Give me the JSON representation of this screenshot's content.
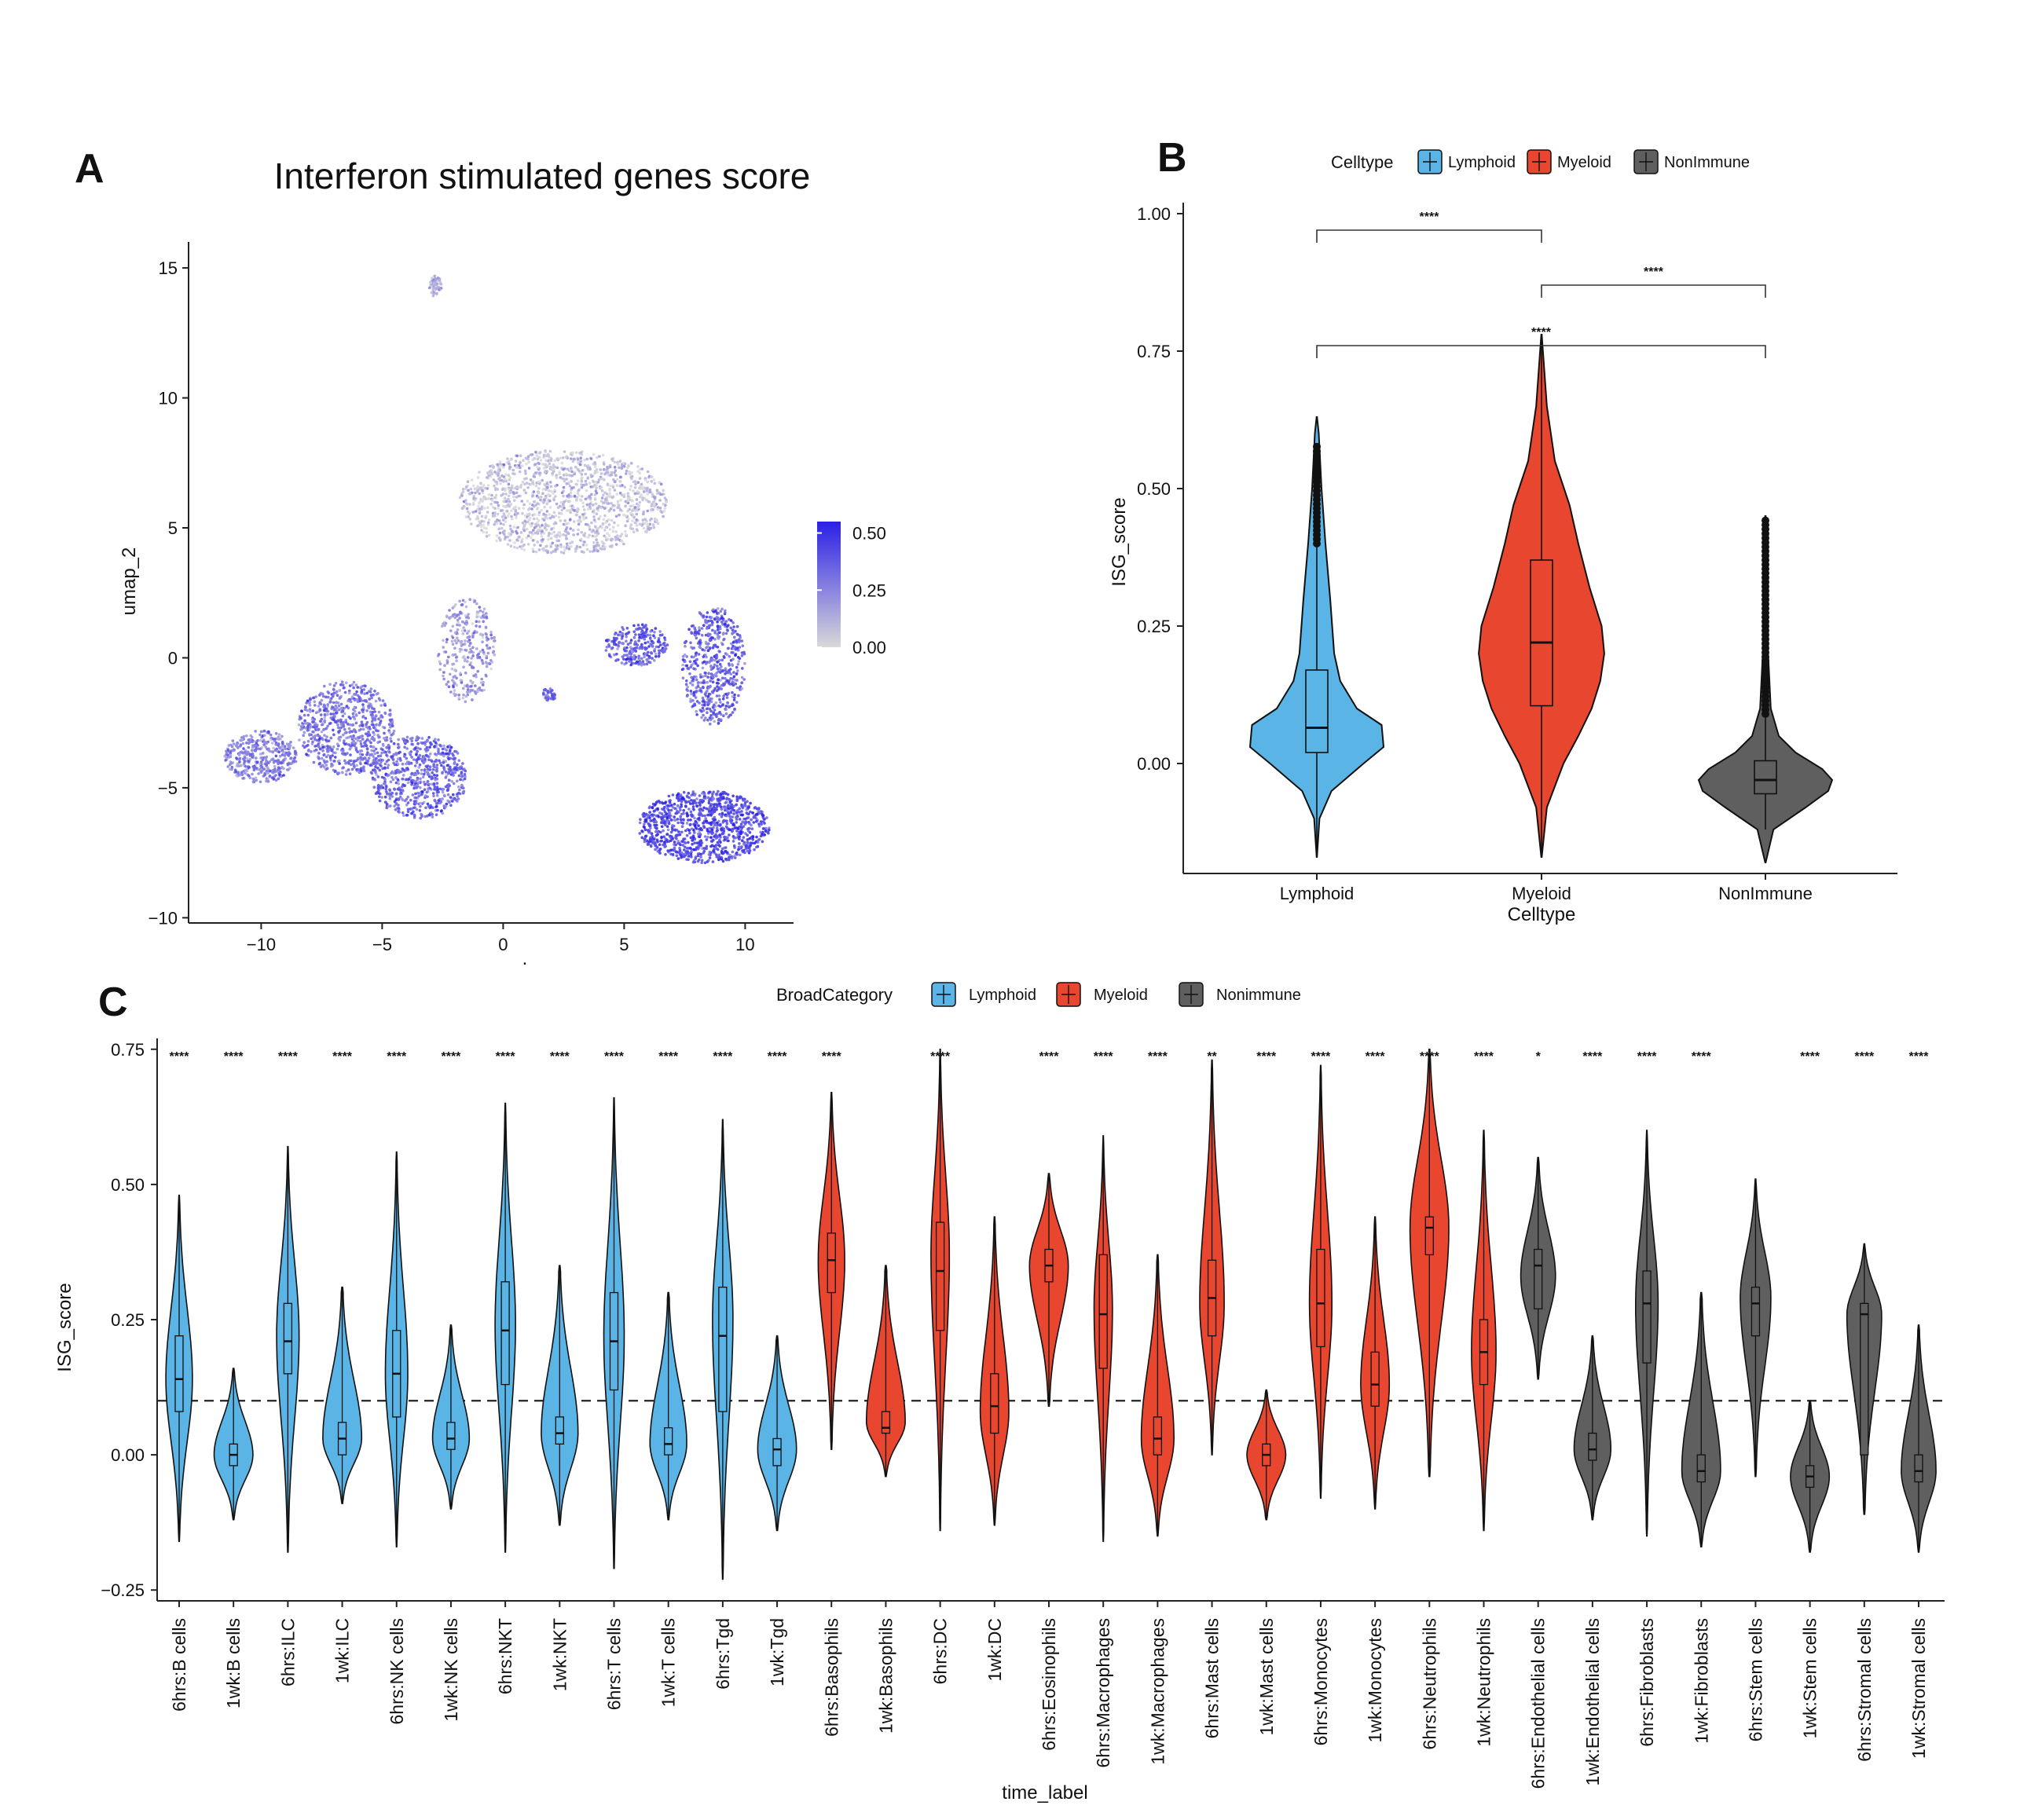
{
  "panels": {
    "A": {
      "letter": "A",
      "title": "Interferon stimulated genes score",
      "ylabel": "umap_2",
      "xlabel": ".",
      "xticks": [
        "−10",
        "−5",
        "0",
        "5",
        "10"
      ],
      "yticks": [
        "15",
        "10",
        "5",
        "0",
        "−5",
        "−10"
      ],
      "colorbar_ticks": [
        "0.50",
        "0.25",
        "0.00"
      ],
      "colorbar_colors": {
        "low": "#d9d9d9",
        "high": "#2a1fe6"
      }
    },
    "B": {
      "letter": "B",
      "legend_title": "Celltype",
      "ylabel": "ISG_score",
      "xlabel": "Celltype",
      "yticks": [
        "1.00",
        "0.75",
        "0.50",
        "0.25",
        "0.00"
      ],
      "sig_label": "****"
    },
    "C": {
      "letter": "C",
      "legend_title": "BroadCategory",
      "ylabel": "ISG_score",
      "xlabel": "time_label",
      "yticks": [
        "0.75",
        "0.50",
        "0.25",
        "0.00",
        "−0.25"
      ]
    }
  },
  "colors": {
    "Lymphoid": "#5ab4e5",
    "Myeloid": "#e8462e",
    "NonImmune": "#5f5f5f"
  },
  "chart_data": [
    {
      "type": "scatter",
      "panel": "A",
      "title": "Interferon stimulated genes score",
      "xlabel": "",
      "ylabel": "umap_2",
      "xlim": [
        -13,
        12
      ],
      "ylim": [
        -10.2,
        16
      ],
      "color_scale": {
        "min": 0.0,
        "max": 0.55,
        "ticks": [
          0.0,
          0.25,
          0.5
        ]
      },
      "clusters": [
        {
          "cx": 2.5,
          "cy": 6.0,
          "rx": 4.3,
          "ry": 2.0,
          "n": 1400,
          "score": 0.08
        },
        {
          "cx": -2.8,
          "cy": 14.3,
          "rx": 0.25,
          "ry": 0.4,
          "n": 60,
          "score": 0.15
        },
        {
          "cx": -10.0,
          "cy": -3.8,
          "rx": 1.5,
          "ry": 1.0,
          "n": 400,
          "score": 0.28
        },
        {
          "cx": -6.5,
          "cy": -2.7,
          "rx": 2.0,
          "ry": 1.8,
          "n": 700,
          "score": 0.33
        },
        {
          "cx": -3.5,
          "cy": -4.6,
          "rx": 2.0,
          "ry": 1.6,
          "n": 650,
          "score": 0.36
        },
        {
          "cx": -1.5,
          "cy": 0.3,
          "rx": 1.2,
          "ry": 2.0,
          "n": 300,
          "score": 0.22
        },
        {
          "cx": 5.5,
          "cy": 0.5,
          "rx": 1.3,
          "ry": 0.8,
          "n": 250,
          "score": 0.4
        },
        {
          "cx": 8.7,
          "cy": -0.3,
          "rx": 1.3,
          "ry": 2.3,
          "n": 550,
          "score": 0.38
        },
        {
          "cx": 8.3,
          "cy": -6.5,
          "rx": 2.7,
          "ry": 1.4,
          "n": 1000,
          "score": 0.45
        },
        {
          "cx": 1.9,
          "cy": -1.4,
          "rx": 0.3,
          "ry": 0.25,
          "n": 40,
          "score": 0.35
        }
      ]
    },
    {
      "type": "violin",
      "panel": "B",
      "xlabel": "Celltype",
      "ylabel": "ISG_score",
      "ylim": [
        -0.2,
        1.02
      ],
      "legend": {
        "title": "Celltype",
        "entries": [
          "Lymphoid",
          "Myeloid",
          "NonImmune"
        ],
        "placement": "top"
      },
      "categories": [
        "Lymphoid",
        "Myeloid",
        "NonImmune"
      ],
      "groups": [
        {
          "name": "Lymphoid",
          "min": -0.17,
          "max": 0.63,
          "q1": 0.02,
          "median": 0.065,
          "q3": 0.17,
          "whisker_low": -0.17,
          "whisker_high": 0.4,
          "outlier_max": 0.58,
          "shape": [
            [
              -0.17,
              0.002
            ],
            [
              -0.1,
              0.04
            ],
            [
              -0.05,
              0.22
            ],
            [
              0.0,
              0.7
            ],
            [
              0.03,
              1.0
            ],
            [
              0.07,
              0.97
            ],
            [
              0.1,
              0.6
            ],
            [
              0.15,
              0.35
            ],
            [
              0.2,
              0.26
            ],
            [
              0.3,
              0.2
            ],
            [
              0.4,
              0.13
            ],
            [
              0.5,
              0.07
            ],
            [
              0.6,
              0.03
            ],
            [
              0.63,
              0.004
            ]
          ]
        },
        {
          "name": "Myeloid",
          "min": -0.17,
          "max": 0.78,
          "q1": 0.105,
          "median": 0.22,
          "q3": 0.37,
          "whisker_low": -0.17,
          "whisker_high": 0.78,
          "outlier_max": null,
          "shape": [
            [
              -0.17,
              0.004
            ],
            [
              -0.08,
              0.08
            ],
            [
              0.0,
              0.33
            ],
            [
              0.05,
              0.55
            ],
            [
              0.1,
              0.75
            ],
            [
              0.15,
              0.88
            ],
            [
              0.2,
              0.94
            ],
            [
              0.25,
              0.9
            ],
            [
              0.32,
              0.72
            ],
            [
              0.4,
              0.55
            ],
            [
              0.47,
              0.42
            ],
            [
              0.55,
              0.2
            ],
            [
              0.65,
              0.08
            ],
            [
              0.78,
              0.004
            ]
          ]
        },
        {
          "name": "NonImmune",
          "min": -0.18,
          "max": 0.45,
          "q1": -0.055,
          "median": -0.03,
          "q3": 0.005,
          "whisker_low": -0.12,
          "whisker_high": 0.09,
          "outlier_max": 0.45,
          "shape": [
            [
              -0.18,
              0.004
            ],
            [
              -0.12,
              0.12
            ],
            [
              -0.08,
              0.6
            ],
            [
              -0.05,
              0.94
            ],
            [
              -0.03,
              1.0
            ],
            [
              -0.01,
              0.85
            ],
            [
              0.02,
              0.45
            ],
            [
              0.05,
              0.2
            ],
            [
              0.1,
              0.08
            ],
            [
              0.2,
              0.04
            ],
            [
              0.3,
              0.025
            ],
            [
              0.45,
              0.004
            ]
          ]
        }
      ],
      "comparisons": [
        {
          "from": "Lymphoid",
          "to": "Myeloid",
          "y": 0.97,
          "label": "****"
        },
        {
          "from": "Myeloid",
          "to": "NonImmune",
          "y": 0.87,
          "label": "****"
        },
        {
          "from": "Lymphoid",
          "to": "NonImmune",
          "y": 0.76,
          "label": "****"
        }
      ]
    },
    {
      "type": "violin",
      "panel": "C",
      "xlabel": "time_label",
      "ylabel": "ISG_score",
      "ylim": [
        -0.27,
        0.77
      ],
      "reference_line": 0.1,
      "legend": {
        "title": "BroadCategory",
        "entries": [
          "Lymphoid",
          "Myeloid",
          "Nonimmune"
        ],
        "placement": "top"
      },
      "groups": [
        {
          "label": "6hrs:B cells",
          "cat": "Lymphoid",
          "min": -0.16,
          "max": 0.48,
          "q1": 0.08,
          "median": 0.14,
          "q3": 0.22,
          "peak": 0.14,
          "width": 0.65,
          "sig": "****"
        },
        {
          "label": "1wk:B cells",
          "cat": "Lymphoid",
          "min": -0.12,
          "max": 0.16,
          "q1": -0.02,
          "median": 0.0,
          "q3": 0.02,
          "peak": 0.0,
          "width": 0.95,
          "sig": "****"
        },
        {
          "label": "6hrs:ILC",
          "cat": "Lymphoid",
          "min": -0.18,
          "max": 0.57,
          "q1": 0.15,
          "median": 0.21,
          "q3": 0.28,
          "peak": 0.22,
          "width": 0.55,
          "sig": "****"
        },
        {
          "label": "1wk:ILC",
          "cat": "Lymphoid",
          "min": -0.09,
          "max": 0.31,
          "q1": 0.0,
          "median": 0.03,
          "q3": 0.06,
          "peak": 0.03,
          "width": 0.95,
          "sig": "****"
        },
        {
          "label": "6hrs:NK cells",
          "cat": "Lymphoid",
          "min": -0.17,
          "max": 0.56,
          "q1": 0.07,
          "median": 0.15,
          "q3": 0.23,
          "peak": 0.15,
          "width": 0.55,
          "sig": "****"
        },
        {
          "label": "1wk:NK cells",
          "cat": "Lymphoid",
          "min": -0.1,
          "max": 0.24,
          "q1": 0.01,
          "median": 0.03,
          "q3": 0.06,
          "peak": 0.03,
          "width": 0.9,
          "sig": "****"
        },
        {
          "label": "6hrs:NKT",
          "cat": "Lymphoid",
          "min": -0.18,
          "max": 0.65,
          "q1": 0.13,
          "median": 0.23,
          "q3": 0.32,
          "peak": 0.24,
          "width": 0.5,
          "sig": "****"
        },
        {
          "label": "1wk:NKT",
          "cat": "Lymphoid",
          "min": -0.13,
          "max": 0.35,
          "q1": 0.02,
          "median": 0.04,
          "q3": 0.07,
          "peak": 0.04,
          "width": 0.9,
          "sig": "****"
        },
        {
          "label": "6hrs:T cells",
          "cat": "Lymphoid",
          "min": -0.21,
          "max": 0.66,
          "q1": 0.12,
          "median": 0.21,
          "q3": 0.3,
          "peak": 0.22,
          "width": 0.5,
          "sig": "****"
        },
        {
          "label": "1wk:T cells",
          "cat": "Lymphoid",
          "min": -0.12,
          "max": 0.3,
          "q1": 0.0,
          "median": 0.02,
          "q3": 0.05,
          "peak": 0.02,
          "width": 0.9,
          "sig": "****"
        },
        {
          "label": "6hrs:Tgd",
          "cat": "Lymphoid",
          "min": -0.23,
          "max": 0.62,
          "q1": 0.08,
          "median": 0.22,
          "q3": 0.31,
          "peak": 0.25,
          "width": 0.5,
          "sig": "****"
        },
        {
          "label": "1wk:Tgd",
          "cat": "Lymphoid",
          "min": -0.14,
          "max": 0.22,
          "q1": -0.02,
          "median": 0.01,
          "q3": 0.03,
          "peak": 0.01,
          "width": 0.95,
          "sig": "****"
        },
        {
          "label": "6hrs:Basophils",
          "cat": "Myeloid",
          "min": 0.01,
          "max": 0.67,
          "q1": 0.3,
          "median": 0.36,
          "q3": 0.41,
          "peak": 0.36,
          "width": 0.65,
          "sig": "****"
        },
        {
          "label": "1wk:Basophils",
          "cat": "Myeloid",
          "min": -0.04,
          "max": 0.35,
          "q1": 0.04,
          "median": 0.05,
          "q3": 0.08,
          "peak": 0.06,
          "width": 0.95,
          "sig": ""
        },
        {
          "label": "6hrs:DC",
          "cat": "Myeloid",
          "min": -0.14,
          "max": 0.75,
          "q1": 0.23,
          "median": 0.34,
          "q3": 0.43,
          "peak": 0.37,
          "width": 0.45,
          "sig": "****"
        },
        {
          "label": "1wk:DC",
          "cat": "Myeloid",
          "min": -0.13,
          "max": 0.44,
          "q1": 0.04,
          "median": 0.09,
          "q3": 0.15,
          "peak": 0.08,
          "width": 0.7,
          "sig": ""
        },
        {
          "label": "6hrs:Eosinophils",
          "cat": "Myeloid",
          "min": 0.09,
          "max": 0.52,
          "q1": 0.32,
          "median": 0.35,
          "q3": 0.38,
          "peak": 0.35,
          "width": 0.95,
          "sig": "****"
        },
        {
          "label": "6hrs:Macrophages",
          "cat": "Myeloid",
          "min": -0.16,
          "max": 0.59,
          "q1": 0.16,
          "median": 0.26,
          "q3": 0.37,
          "peak": 0.27,
          "width": 0.45,
          "sig": "****"
        },
        {
          "label": "1wk:Macrophages",
          "cat": "Myeloid",
          "min": -0.15,
          "max": 0.37,
          "q1": 0.0,
          "median": 0.03,
          "q3": 0.07,
          "peak": 0.03,
          "width": 0.8,
          "sig": "****"
        },
        {
          "label": "6hrs:Mast cells",
          "cat": "Myeloid",
          "min": 0.0,
          "max": 0.73,
          "q1": 0.22,
          "median": 0.29,
          "q3": 0.36,
          "peak": 0.28,
          "width": 0.6,
          "sig": "**"
        },
        {
          "label": "1wk:Mast cells",
          "cat": "Myeloid",
          "min": -0.12,
          "max": 0.12,
          "q1": -0.02,
          "median": 0.0,
          "q3": 0.02,
          "peak": 0.0,
          "width": 0.95,
          "sig": "****"
        },
        {
          "label": "6hrs:Monocytes",
          "cat": "Myeloid",
          "min": -0.08,
          "max": 0.72,
          "q1": 0.2,
          "median": 0.28,
          "q3": 0.38,
          "peak": 0.28,
          "width": 0.55,
          "sig": "****"
        },
        {
          "label": "1wk:Monocytes",
          "cat": "Myeloid",
          "min": -0.1,
          "max": 0.44,
          "q1": 0.09,
          "median": 0.13,
          "q3": 0.19,
          "peak": 0.13,
          "width": 0.7,
          "sig": "****"
        },
        {
          "label": "6hrs:Neutrophils",
          "cat": "Myeloid",
          "min": -0.04,
          "max": 0.75,
          "q1": 0.37,
          "median": 0.42,
          "q3": 0.44,
          "peak": 0.42,
          "width": 0.95,
          "sig": "****"
        },
        {
          "label": "1wk:Neutrophils",
          "cat": "Myeloid",
          "min": -0.14,
          "max": 0.6,
          "q1": 0.13,
          "median": 0.19,
          "q3": 0.25,
          "peak": 0.19,
          "width": 0.6,
          "sig": "****"
        },
        {
          "label": "6hrs:Endothelial cells",
          "cat": "NonImmune",
          "min": 0.14,
          "max": 0.55,
          "q1": 0.27,
          "median": 0.35,
          "q3": 0.38,
          "peak": 0.33,
          "width": 0.85,
          "sig": "*"
        },
        {
          "label": "1wk:Endothelial cells",
          "cat": "NonImmune",
          "min": -0.12,
          "max": 0.22,
          "q1": -0.01,
          "median": 0.01,
          "q3": 0.04,
          "peak": 0.01,
          "width": 0.9,
          "sig": "****"
        },
        {
          "label": "6hrs:Fibroblasts",
          "cat": "NonImmune",
          "min": -0.15,
          "max": 0.6,
          "q1": 0.17,
          "median": 0.28,
          "q3": 0.34,
          "peak": 0.28,
          "width": 0.55,
          "sig": "****"
        },
        {
          "label": "1wk:Fibroblasts",
          "cat": "NonImmune",
          "min": -0.17,
          "max": 0.3,
          "q1": -0.05,
          "median": -0.03,
          "q3": 0.0,
          "peak": -0.03,
          "width": 0.95,
          "sig": "****"
        },
        {
          "label": "6hrs:Stem cells",
          "cat": "NonImmune",
          "min": -0.04,
          "max": 0.51,
          "q1": 0.22,
          "median": 0.28,
          "q3": 0.31,
          "peak": 0.29,
          "width": 0.75,
          "sig": ""
        },
        {
          "label": "1wk:Stem cells",
          "cat": "NonImmune",
          "min": -0.18,
          "max": 0.1,
          "q1": -0.06,
          "median": -0.04,
          "q3": -0.02,
          "peak": -0.04,
          "width": 0.95,
          "sig": "****"
        },
        {
          "label": "6hrs:Stromal cells",
          "cat": "NonImmune",
          "min": -0.11,
          "max": 0.39,
          "q1": 0.0,
          "median": 0.26,
          "q3": 0.28,
          "peak": 0.26,
          "width": 0.85,
          "sig": "****"
        },
        {
          "label": "1wk:Stromal cells",
          "cat": "NonImmune",
          "min": -0.18,
          "max": 0.24,
          "q1": -0.05,
          "median": -0.03,
          "q3": 0.0,
          "peak": -0.03,
          "width": 0.85,
          "sig": "****"
        }
      ]
    }
  ]
}
